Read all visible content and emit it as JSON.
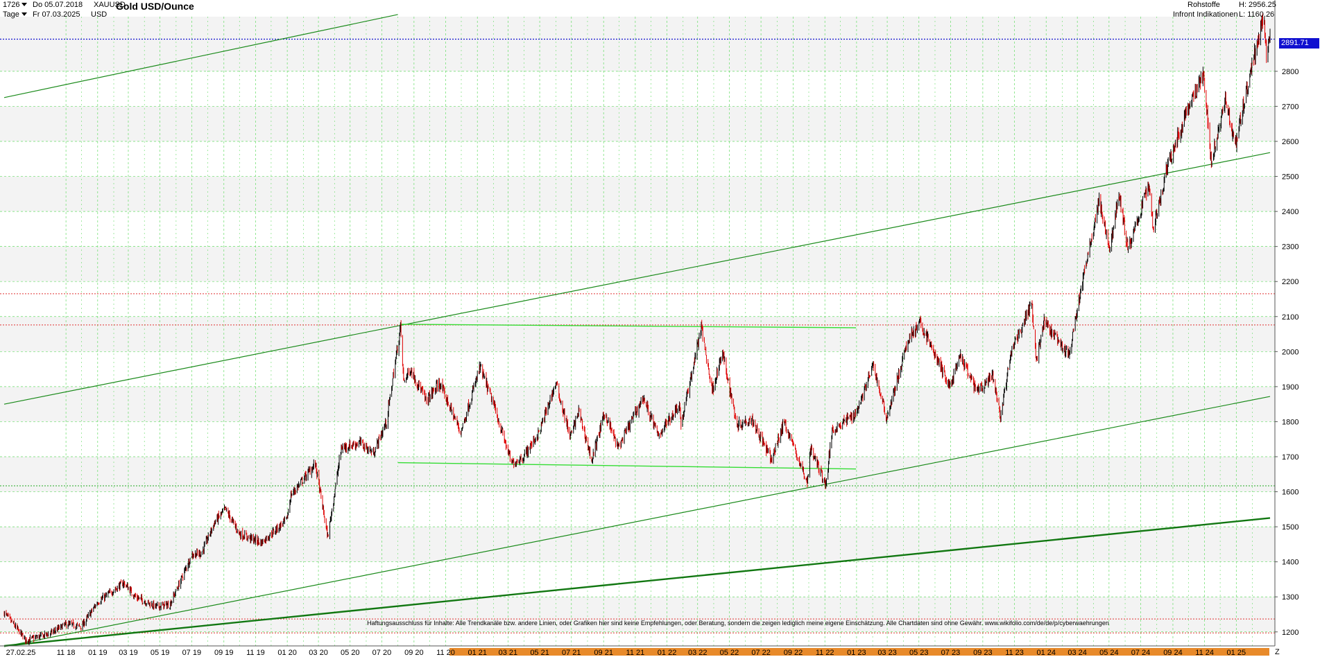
{
  "header": {
    "bars_count": "1726",
    "timeframe": "Tage",
    "date_from": "Do 05.07.2018",
    "date_to": "Fr 07.03.2025",
    "symbol": "XAUUSD",
    "currency": "USD",
    "title": "Gold USD/Ounce",
    "category": "Rohstoffe",
    "source": "Infront Indikationen",
    "high_label": "H: 2956.25",
    "low_label": "L: 1160.26"
  },
  "price_label": "2891.71",
  "disclaimer": "Haftungsausschluss für Inhalte: Alle Trendkanäle bzw. andere Linien, oder Grafiken hier sind keine Empfehlungen, oder Beratung, sondern die zeigen lediglich meine eigene Einschätzung. Alle Chartdaten sind ohne Gewähr.  www.wikifolio.com/de/de/p/cyberwaehrungen",
  "corner_label": "Z",
  "colors": {
    "up_candle": "#000000",
    "down_candle": "#e00000",
    "trend_line": "#1a8a1a",
    "range_line": "#33dd33",
    "price_line": "#1010d0",
    "level_line": "#e03030",
    "support_dotted": "#22aa22",
    "grid": "#66dd66",
    "shade": "#f3f3f3",
    "axis_bar": "#e88a2a"
  },
  "chart_data": {
    "type": "candlestick",
    "title": "Gold USD/Ounce",
    "x_start": "2018-07-05",
    "x_end": "2025-03-07",
    "ylim": [
      1160,
      2956
    ],
    "y_ticks": [
      1200,
      1300,
      1400,
      1500,
      1600,
      1700,
      1800,
      1900,
      2000,
      2100,
      2200,
      2300,
      2400,
      2500,
      2600,
      2700,
      2800
    ],
    "x_tick_labels": [
      "27.02.25",
      "11 18",
      "01 19",
      "03 19",
      "05 19",
      "07 19",
      "09 19",
      "11 19",
      "01 20",
      "03 20",
      "05 20",
      "07 20",
      "09 20",
      "11 20",
      "01 21",
      "03 21",
      "05 21",
      "07 21",
      "09 21",
      "11 21",
      "01 22",
      "03 22",
      "05 22",
      "07 22",
      "09 22",
      "11 22",
      "01 23",
      "03 23",
      "05 23",
      "07 23",
      "09 23",
      "11 23",
      "01 24",
      "03 24",
      "05 24",
      "07 24",
      "09 24",
      "11 24",
      "01 25"
    ],
    "last_price": 2891.71,
    "high": 2956.25,
    "low": 1160.26,
    "price_path": [
      [
        "2018-07-05",
        1255
      ],
      [
        "2018-08-16",
        1176
      ],
      [
        "2018-10-01",
        1195
      ],
      [
        "2018-11-01",
        1222
      ],
      [
        "2018-12-01",
        1215
      ],
      [
        "2019-01-01",
        1285
      ],
      [
        "2019-02-20",
        1340
      ],
      [
        "2019-03-15",
        1300
      ],
      [
        "2019-04-23",
        1272
      ],
      [
        "2019-05-20",
        1278
      ],
      [
        "2019-06-05",
        1330
      ],
      [
        "2019-07-01",
        1420
      ],
      [
        "2019-07-20",
        1425
      ],
      [
        "2019-08-15",
        1515
      ],
      [
        "2019-09-04",
        1550
      ],
      [
        "2019-10-01",
        1480
      ],
      [
        "2019-11-12",
        1455
      ],
      [
        "2019-12-31",
        1520
      ],
      [
        "2020-01-08",
        1590
      ],
      [
        "2020-02-24",
        1680
      ],
      [
        "2020-03-19",
        1470
      ],
      [
        "2020-04-14",
        1725
      ],
      [
        "2020-05-20",
        1740
      ],
      [
        "2020-06-15",
        1710
      ],
      [
        "2020-07-10",
        1800
      ],
      [
        "2020-08-06",
        2070
      ],
      [
        "2020-08-12",
        1915
      ],
      [
        "2020-08-25",
        1950
      ],
      [
        "2020-09-25",
        1860
      ],
      [
        "2020-10-20",
        1910
      ],
      [
        "2020-11-30",
        1770
      ],
      [
        "2021-01-06",
        1955
      ],
      [
        "2021-02-01",
        1850
      ],
      [
        "2021-03-08",
        1680
      ],
      [
        "2021-03-31",
        1700
      ],
      [
        "2021-04-30",
        1770
      ],
      [
        "2021-06-01",
        1910
      ],
      [
        "2021-06-29",
        1755
      ],
      [
        "2021-07-15",
        1830
      ],
      [
        "2021-08-09",
        1690
      ],
      [
        "2021-09-03",
        1825
      ],
      [
        "2021-09-29",
        1725
      ],
      [
        "2021-11-16",
        1870
      ],
      [
        "2021-12-15",
        1760
      ],
      [
        "2022-01-25",
        1850
      ],
      [
        "2022-01-28",
        1790
      ],
      [
        "2022-03-08",
        2070
      ],
      [
        "2022-03-29",
        1890
      ],
      [
        "2022-04-18",
        1995
      ],
      [
        "2022-05-16",
        1790
      ],
      [
        "2022-06-13",
        1810
      ],
      [
        "2022-07-21",
        1690
      ],
      [
        "2022-08-15",
        1800
      ],
      [
        "2022-09-28",
        1625
      ],
      [
        "2022-10-04",
        1725
      ],
      [
        "2022-11-03",
        1620
      ],
      [
        "2022-11-15",
        1775
      ],
      [
        "2022-12-31",
        1825
      ],
      [
        "2023-02-02",
        1960
      ],
      [
        "2023-02-28",
        1810
      ],
      [
        "2023-04-13",
        2045
      ],
      [
        "2023-05-04",
        2080
      ],
      [
        "2023-06-29",
        1900
      ],
      [
        "2023-07-20",
        1985
      ],
      [
        "2023-08-21",
        1885
      ],
      [
        "2023-09-20",
        1930
      ],
      [
        "2023-10-05",
        1815
      ],
      [
        "2023-10-27",
        2005
      ],
      [
        "2023-12-04",
        2140
      ],
      [
        "2023-12-13",
        1975
      ],
      [
        "2023-12-28",
        2085
      ],
      [
        "2024-02-14",
        1985
      ],
      [
        "2024-03-08",
        2180
      ],
      [
        "2024-04-12",
        2430
      ],
      [
        "2024-05-02",
        2290
      ],
      [
        "2024-05-20",
        2450
      ],
      [
        "2024-06-07",
        2290
      ],
      [
        "2024-07-17",
        2480
      ],
      [
        "2024-07-25",
        2350
      ],
      [
        "2024-08-20",
        2520
      ],
      [
        "2024-09-26",
        2680
      ],
      [
        "2024-10-30",
        2790
      ],
      [
        "2024-11-14",
        2540
      ],
      [
        "2024-12-11",
        2725
      ],
      [
        "2024-12-30",
        2590
      ],
      [
        "2025-01-30",
        2810
      ],
      [
        "2025-02-24",
        2956
      ],
      [
        "2025-02-28",
        2835
      ],
      [
        "2025-03-07",
        2910
      ]
    ],
    "drawn_lines": {
      "trend_channel_upper": [
        [
          "2018-07-05",
          2725
        ],
        [
          "2020-08-01",
          2962
        ]
      ],
      "trend_channel_mid": [
        [
          "2018-07-05",
          1850
        ],
        [
          "2025-03-07",
          2568
        ]
      ],
      "trend_channel_lower": [
        [
          "2018-07-05",
          1158
        ],
        [
          "2025-03-07",
          1872
        ]
      ],
      "long_support": [
        [
          "2018-07-05",
          1160
        ],
        [
          "2025-03-07",
          1525
        ]
      ],
      "range_top": [
        [
          "2020-08-05",
          2078
        ],
        [
          "2022-12-31",
          2068
        ]
      ],
      "range_bottom": [
        [
          "2020-08-01",
          1683
        ],
        [
          "2022-12-31",
          1665
        ]
      ]
    },
    "horizontal_levels": [
      2891.71,
      2165,
      2076,
      1617,
      1237,
      1197
    ],
    "grid": true
  }
}
